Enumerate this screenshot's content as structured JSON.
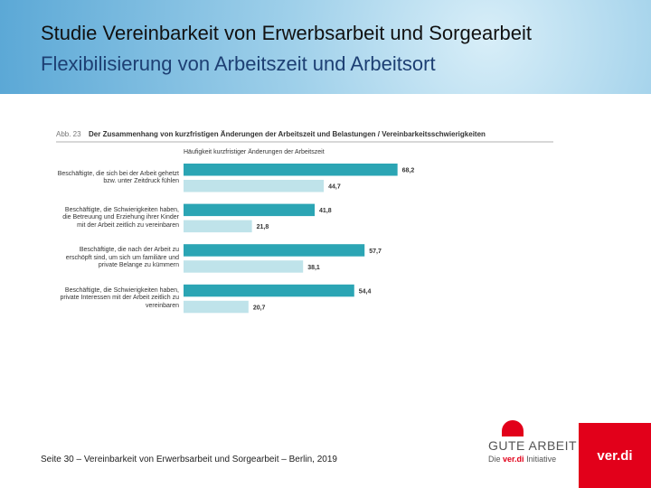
{
  "header": {
    "title": "Studie Vereinbarkeit von Erwerbsarbeit und Sorgearbeit",
    "subtitle": "Flexibilisierung von Arbeitszeit und Arbeitsort"
  },
  "chart_data": {
    "type": "bar",
    "orientation": "horizontal",
    "figure_label": "Abb. 23",
    "title": "Der Zusammenhang von kurzfristigen Änderungen der Arbeitszeit und Belastungen / Vereinbarkeitsschwierigkeiten",
    "subtitle": "Häufigkeit kurzfristiger Änderungen der Arbeitszeit",
    "categories": [
      "Beschäftigte, die sich bei der Arbeit gehetzt bzw. unter Zeitdruck fühlen",
      "Beschäftigte, die Schwierigkeiten haben, die Betreuung und Erziehung ihrer Kinder mit der Arbeit zeitlich zu vereinbaren",
      "Beschäftigte, die nach der Arbeit zu erschöpft sind, um sich um familiäre und private Belange zu kümmern",
      "Beschäftigte, die Schwierigkeiten haben, private Interessen mit der Arbeit zeitlich zu vereinbaren"
    ],
    "series": [
      {
        "color": "#2ba5b4",
        "values": [
          68.2,
          41.8,
          57.7,
          54.4
        ],
        "value_labels": [
          "68,2",
          "41,8",
          "57,7",
          "54,4"
        ]
      },
      {
        "color": "#bfe3ea",
        "values": [
          44.7,
          21.8,
          38.1,
          20.7
        ],
        "value_labels": [
          "44,7",
          "21,8",
          "38,1",
          "20,7"
        ]
      }
    ]
  },
  "footer": {
    "text": "Seite 30 – Vereinbarkeit von Erwerbsarbeit und Sorgearbeit – Berlin, 2019",
    "logo_title": "GUTE ARBEIT",
    "logo_prefix": "Die",
    "logo_brand": "ver.di",
    "logo_suffix": "Initiative",
    "badge": "ver.di"
  }
}
